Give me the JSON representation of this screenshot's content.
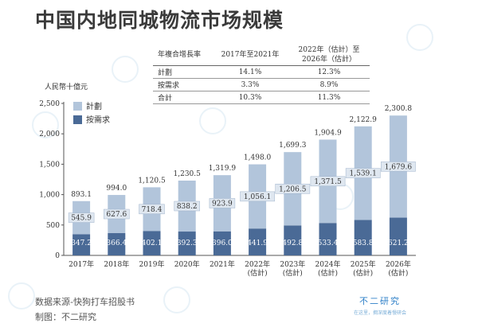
{
  "page": {
    "title": "中国内地同城物流市场规模",
    "source": "数据来源-快狗打车招股书",
    "made_by": "制图：不二研究",
    "brand_name": "不二研究",
    "brand_slogan": "在这里，拥深度着慢研会"
  },
  "cagr_table": {
    "headers": [
      "年複合增長率",
      "2017年至2021年",
      "2022年（估計）至2026年（估計）"
    ],
    "rows": [
      [
        "計劃",
        "14.1%",
        "12.3%"
      ],
      [
        "按需求",
        "3.3%",
        "8.9%"
      ],
      [
        "合計",
        "10.3%",
        "11.3%"
      ]
    ]
  },
  "chart_data": {
    "type": "bar",
    "stacked": true,
    "ylabel": "人民幣十億元",
    "ylim": [
      0,
      2500
    ],
    "yticks": [
      "0",
      "500",
      "1,000",
      "1,500",
      "2,000",
      "2,500"
    ],
    "categories": [
      "2017年",
      "2018年",
      "2019年",
      "2020年",
      "2021年",
      "2022年(估計)",
      "2023年(估計)",
      "2024年(估計)",
      "2025年(估計)",
      "2026年(估計)"
    ],
    "category_lines": [
      [
        "2017年"
      ],
      [
        "2018年"
      ],
      [
        "2019年"
      ],
      [
        "2020年"
      ],
      [
        "2021年"
      ],
      [
        "2022年",
        "(估計)"
      ],
      [
        "2023年",
        "(估計)"
      ],
      [
        "2024年",
        "(估計)"
      ],
      [
        "2025年",
        "(估計)"
      ],
      [
        "2026年",
        "(估計)"
      ]
    ],
    "series": [
      {
        "name": "按需求",
        "color": "#4a6a96",
        "values": [
          347.2,
          366.4,
          402.1,
          392.3,
          396.0,
          441.9,
          492.8,
          533.4,
          583.8,
          621.2
        ],
        "labels": [
          "347.2",
          "366.4",
          "402.1",
          "392.3",
          "396.0",
          "441.9",
          "492.8",
          "533.4",
          "583.8",
          "621.2"
        ]
      },
      {
        "name": "計劃",
        "color": "#b2c5db",
        "values": [
          545.9,
          627.6,
          718.4,
          838.2,
          923.9,
          1056.1,
          1206.5,
          1371.5,
          1539.1,
          1679.6
        ],
        "labels": [
          "545.9",
          "627.6",
          "718.4",
          "838.2",
          "923.9",
          "1,056.1",
          "1,206.5",
          "1,371.5",
          "1,539.1",
          "1,679.6"
        ]
      }
    ],
    "totals": [
      "893.1",
      "994.0",
      "1,120.5",
      "1,230.5",
      "1,319.9",
      "1,498.0",
      "1,699.3",
      "1,904.9",
      "2,122.9",
      "2,300.8"
    ],
    "legend": [
      "計劃",
      "按需求"
    ],
    "legend_position": "top-left",
    "grid": false
  }
}
